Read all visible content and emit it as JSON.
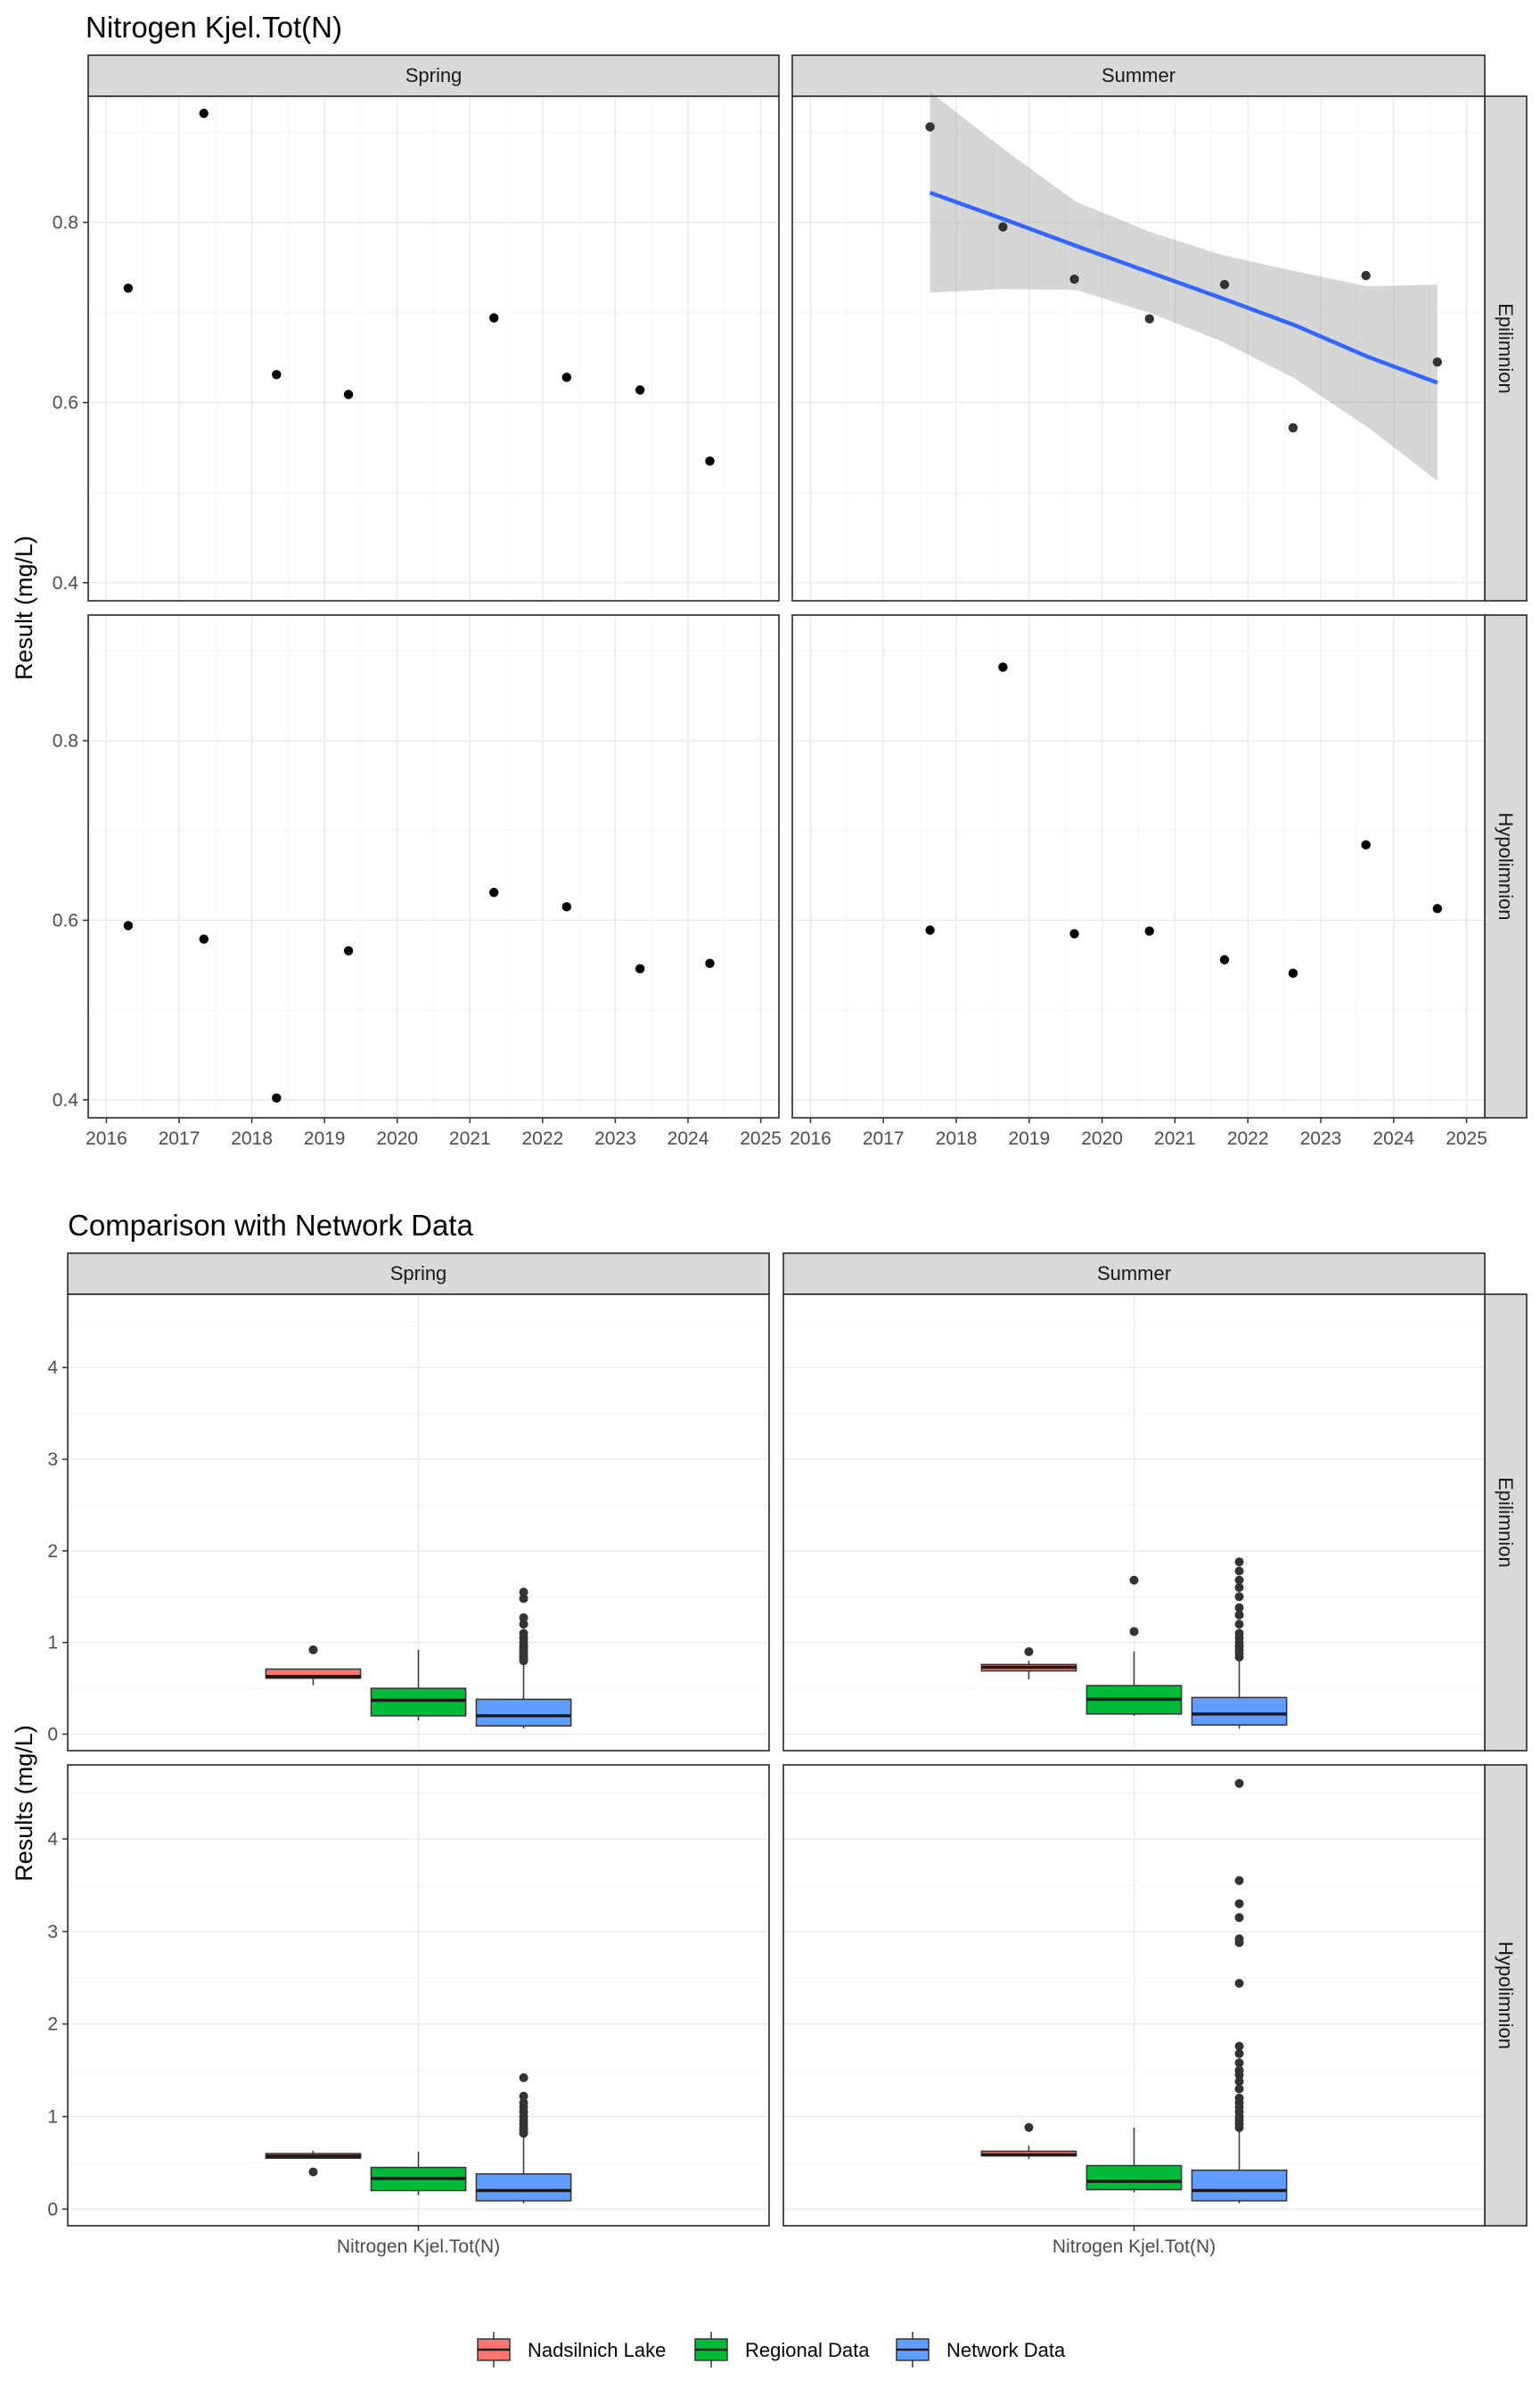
{
  "figure1": {
    "title": "Nitrogen Kjel.Tot(N)",
    "ylabel": "Result (mg/L)"
  },
  "figure2": {
    "title": "Comparison with Network Data",
    "ylabel": "Results (mg/L)"
  },
  "legend": {
    "items": [
      {
        "label": "Nadsilnich Lake",
        "color": "#F8766D"
      },
      {
        "label": "Regional Data",
        "color": "#00BA38"
      },
      {
        "label": "Network Data",
        "color": "#619CFF"
      }
    ]
  },
  "chart_data": [
    {
      "type": "scatter",
      "title": "Nitrogen Kjel.Tot(N)",
      "ylabel": "Result (mg/L)",
      "xlabel": "",
      "columns": [
        "Spring",
        "Summer"
      ],
      "rows": [
        "Epilimnion",
        "Hypolimnion"
      ],
      "xlim": [
        2015.75,
        2025.25
      ],
      "ylim": [
        0.38,
        0.94
      ],
      "x_ticks": [
        2016,
        2017,
        2018,
        2019,
        2020,
        2021,
        2022,
        2023,
        2024,
        2025
      ],
      "y_ticks": [
        0.4,
        0.6,
        0.8
      ],
      "grid": true,
      "point_color": "#000000",
      "panels": [
        {
          "column": "Spring",
          "row": "Epilimnion",
          "x": [
            2016.3,
            2017.34,
            2018.34,
            2019.33,
            2021.33,
            2022.33,
            2023.34,
            2024.3
          ],
          "y": [
            0.727,
            0.921,
            0.631,
            0.609,
            0.694,
            0.628,
            0.614,
            0.535
          ]
        },
        {
          "column": "Summer",
          "row": "Epilimnion",
          "x": [
            2017.64,
            2018.64,
            2019.62,
            2020.65,
            2021.68,
            2022.62,
            2023.62,
            2024.6
          ],
          "y": [
            0.906,
            0.795,
            0.737,
            0.693,
            0.731,
            0.572,
            0.741,
            0.645
          ],
          "trend": {
            "color": "#3366FF",
            "band_color": "#999999",
            "x": [
              2017.64,
              2018.64,
              2019.64,
              2020.64,
              2021.64,
              2022.64,
              2023.64,
              2024.6
            ],
            "fit": [
              0.833,
              0.804,
              0.774,
              0.745,
              0.716,
              0.686,
              0.651,
              0.622
            ],
            "lower": [
              0.722,
              0.726,
              0.725,
              0.7,
              0.668,
              0.627,
              0.573,
              0.513
            ],
            "upper": [
              0.945,
              0.882,
              0.823,
              0.79,
              0.764,
              0.746,
              0.729,
              0.731
            ]
          }
        },
        {
          "column": "Spring",
          "row": "Hypolimnion",
          "x": [
            2016.3,
            2017.34,
            2018.34,
            2019.33,
            2021.33,
            2022.33,
            2023.34,
            2024.3
          ],
          "y": [
            0.594,
            0.579,
            0.402,
            0.566,
            0.631,
            0.615,
            0.546,
            0.552
          ]
        },
        {
          "column": "Summer",
          "row": "Hypolimnion",
          "x": [
            2017.64,
            2018.64,
            2019.62,
            2020.65,
            2021.68,
            2022.62,
            2023.62,
            2024.6
          ],
          "y": [
            0.589,
            0.882,
            0.585,
            0.588,
            0.556,
            0.541,
            0.684,
            0.613
          ]
        }
      ]
    },
    {
      "type": "box",
      "title": "Comparison with Network Data",
      "ylabel": "Results (mg/L)",
      "categories": [
        "Nitrogen Kjel.Tot(N)"
      ],
      "columns": [
        "Spring",
        "Summer"
      ],
      "rows": [
        "Epilimnion",
        "Hypolimnion"
      ],
      "series": [
        "Nadsilnich Lake",
        "Regional Data",
        "Network Data"
      ],
      "ylim": [
        -0.18,
        4.8
      ],
      "y_ticks": [
        0,
        1,
        2,
        3,
        4
      ],
      "grid": true,
      "legend_position": "bottom",
      "panels": [
        {
          "column": "Spring",
          "row": "Epilimnion",
          "boxes": [
            {
              "series": "Nadsilnich Lake",
              "whisker_low": 0.535,
              "q1": 0.61,
              "median": 0.63,
              "q3": 0.71,
              "whisker_high": 0.71,
              "outliers": [
                0.92
              ]
            },
            {
              "series": "Regional Data",
              "whisker_low": 0.15,
              "q1": 0.2,
              "median": 0.37,
              "q3": 0.5,
              "whisker_high": 0.92,
              "outliers": []
            },
            {
              "series": "Network Data",
              "whisker_low": 0.06,
              "q1": 0.09,
              "median": 0.2,
              "q3": 0.38,
              "whisker_high": 0.78,
              "outliers": [
                0.8,
                0.82,
                0.85,
                0.88,
                0.9,
                0.93,
                0.96,
                1.0,
                1.05,
                1.1,
                1.2,
                1.27,
                1.48,
                1.55
              ]
            }
          ]
        },
        {
          "column": "Summer",
          "row": "Epilimnion",
          "boxes": [
            {
              "series": "Nadsilnich Lake",
              "whisker_low": 0.6,
              "q1": 0.69,
              "median": 0.73,
              "q3": 0.76,
              "whisker_high": 0.8,
              "outliers": [
                0.9
              ]
            },
            {
              "series": "Regional Data",
              "whisker_low": 0.2,
              "q1": 0.22,
              "median": 0.38,
              "q3": 0.53,
              "whisker_high": 0.9,
              "outliers": [
                1.12,
                1.68
              ]
            },
            {
              "series": "Network Data",
              "whisker_low": 0.06,
              "q1": 0.1,
              "median": 0.22,
              "q3": 0.4,
              "whisker_high": 0.82,
              "outliers": [
                0.84,
                0.88,
                0.92,
                0.96,
                1.0,
                1.05,
                1.1,
                1.2,
                1.3,
                1.38,
                1.5,
                1.6,
                1.68,
                1.78,
                1.88
              ]
            }
          ]
        },
        {
          "column": "Spring",
          "row": "Hypolimnion",
          "boxes": [
            {
              "series": "Nadsilnich Lake",
              "whisker_low": 0.546,
              "q1": 0.55,
              "median": 0.573,
              "q3": 0.6,
              "whisker_high": 0.631,
              "outliers": [
                0.402
              ]
            },
            {
              "series": "Regional Data",
              "whisker_low": 0.15,
              "q1": 0.2,
              "median": 0.33,
              "q3": 0.45,
              "whisker_high": 0.62,
              "outliers": []
            },
            {
              "series": "Network Data",
              "whisker_low": 0.06,
              "q1": 0.09,
              "median": 0.2,
              "q3": 0.38,
              "whisker_high": 0.8,
              "outliers": [
                0.82,
                0.85,
                0.88,
                0.92,
                0.96,
                1.0,
                1.05,
                1.1,
                1.15,
                1.22,
                1.42
              ]
            }
          ]
        },
        {
          "column": "Summer",
          "row": "Hypolimnion",
          "boxes": [
            {
              "series": "Nadsilnich Lake",
              "whisker_low": 0.541,
              "q1": 0.575,
              "median": 0.587,
              "q3": 0.625,
              "whisker_high": 0.684,
              "outliers": [
                0.882
              ]
            },
            {
              "series": "Regional Data",
              "whisker_low": 0.18,
              "q1": 0.21,
              "median": 0.3,
              "q3": 0.47,
              "whisker_high": 0.88,
              "outliers": []
            },
            {
              "series": "Network Data",
              "whisker_low": 0.06,
              "q1": 0.09,
              "median": 0.2,
              "q3": 0.42,
              "whisker_high": 0.85,
              "outliers": [
                0.88,
                0.92,
                0.96,
                1.0,
                1.05,
                1.1,
                1.15,
                1.2,
                1.3,
                1.38,
                1.45,
                1.5,
                1.58,
                1.68,
                1.76,
                2.44,
                2.88,
                2.92,
                3.15,
                3.3,
                3.55,
                4.6
              ]
            }
          ]
        }
      ]
    }
  ]
}
